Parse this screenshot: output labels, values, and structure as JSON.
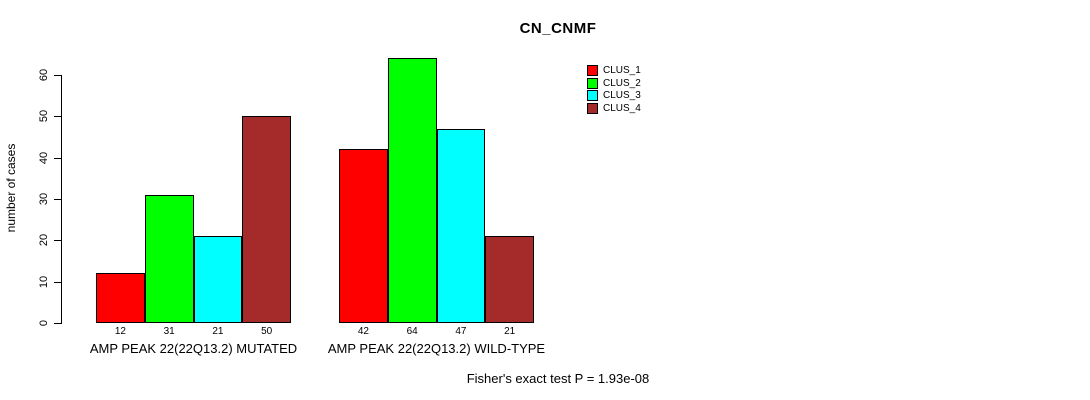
{
  "chart_data": {
    "type": "bar",
    "title": "CN_CNMF",
    "ylabel": "number of cases",
    "xlabel": "",
    "ylim": [
      0,
      60
    ],
    "yticks": [
      0,
      10,
      20,
      30,
      40,
      50,
      60
    ],
    "categories": [
      "AMP PEAK 22(22Q13.2) MUTATED",
      "AMP PEAK 22(22Q13.2) WILD-TYPE"
    ],
    "series": [
      {
        "name": "CLUS_1",
        "color": "#ff0000",
        "values": [
          12,
          42
        ]
      },
      {
        "name": "CLUS_2",
        "color": "#00ff00",
        "values": [
          31,
          64
        ]
      },
      {
        "name": "CLUS_3",
        "color": "#00ffff",
        "values": [
          21,
          47
        ]
      },
      {
        "name": "CLUS_4",
        "color": "#a52a2a",
        "values": [
          50,
          21
        ]
      }
    ],
    "bar_value_labels": [
      [
        12,
        31,
        21,
        50
      ],
      [
        42,
        64,
        47,
        21
      ]
    ],
    "legend_position": "top-right",
    "grid": false,
    "background": "#ffffff",
    "axis_color": "#000000",
    "annotation": "Fisher's exact test P = 1.93e-08"
  }
}
